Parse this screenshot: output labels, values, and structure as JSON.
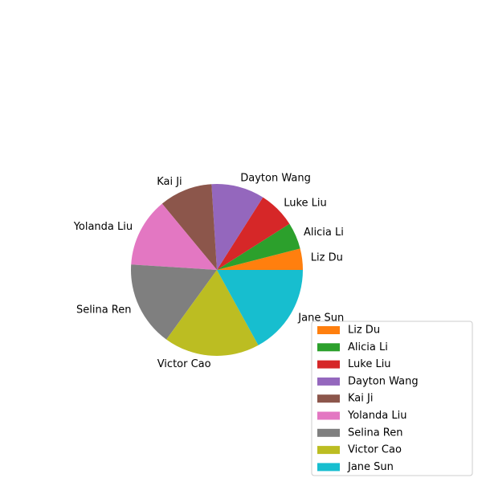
{
  "chart_data": {
    "type": "pie",
    "categories": [
      "Liz Du",
      "Alicia Li",
      "Luke Liu",
      "Dayton Wang",
      "Kai Ji",
      "Yolanda Liu",
      "Selina Ren",
      "Victor Cao",
      "Jane Sun"
    ],
    "values": [
      4,
      5,
      7,
      10,
      10,
      13,
      16,
      18,
      17
    ],
    "colors": [
      "#ff7f0e",
      "#2ca02c",
      "#d62728",
      "#9467bd",
      "#8c564b",
      "#e377c2",
      "#7f7f7f",
      "#bcbd22",
      "#17becf"
    ],
    "start_angle_deg": 0,
    "direction": "counterclockwise",
    "legend_position": "lower-right"
  }
}
